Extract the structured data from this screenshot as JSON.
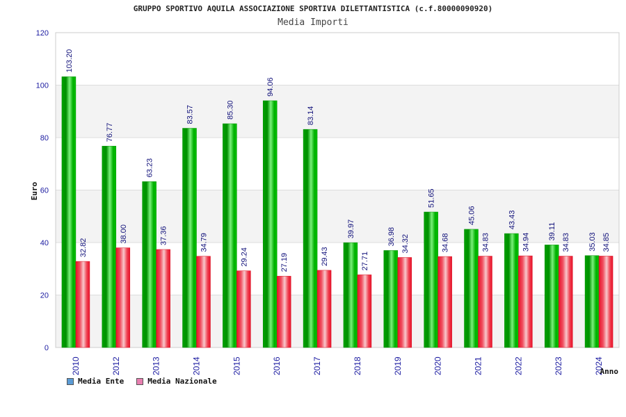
{
  "chart_data": {
    "type": "bar",
    "title": "GRUPPO SPORTIVO AQUILA ASSOCIAZIONE SPORTIVA DILETTANTISTICA (c.f.80000090920)",
    "subtitle": "Media Importi",
    "xlabel": "Anno",
    "ylabel": "Euro",
    "ylim": [
      0,
      120
    ],
    "yticks": [
      "0",
      "20",
      "40",
      "60",
      "80",
      "100",
      "120"
    ],
    "categories": [
      "2010",
      "2012",
      "2013",
      "2014",
      "2015",
      "2016",
      "2017",
      "2018",
      "2019",
      "2020",
      "2021",
      "2022",
      "2023",
      "2024"
    ],
    "series": [
      {
        "name": "Media Ente",
        "color": "#00aa00",
        "values": [
          103.2,
          76.77,
          63.23,
          83.57,
          85.3,
          94.06,
          83.14,
          39.97,
          36.98,
          51.65,
          45.06,
          43.43,
          39.11,
          35.03
        ],
        "labels": [
          "103.20",
          "76.77",
          "63.23",
          "83.57",
          "85.30",
          "94.06",
          "83.14",
          "39.97",
          "36.98",
          "51.65",
          "45.06",
          "43.43",
          "39.11",
          "35.03"
        ]
      },
      {
        "name": "Media Nazionale",
        "color": "#ee2a3a",
        "values": [
          32.82,
          38.0,
          37.36,
          34.79,
          29.24,
          27.19,
          29.43,
          27.71,
          34.32,
          34.68,
          34.83,
          34.94,
          34.83,
          34.85
        ],
        "labels": [
          "32.82",
          "38.00",
          "37.36",
          "34.79",
          "29.24",
          "27.19",
          "29.43",
          "27.71",
          "34.32",
          "34.68",
          "34.83",
          "34.94",
          "34.83",
          "34.85"
        ]
      }
    ],
    "grid": true,
    "legend_position": "bottom-left"
  },
  "legend": {
    "ente_label": "Media Ente",
    "ente_color": "#5b9bd5",
    "nazionale_label": "Media Nazionale",
    "nazionale_color": "#e87fb0"
  }
}
